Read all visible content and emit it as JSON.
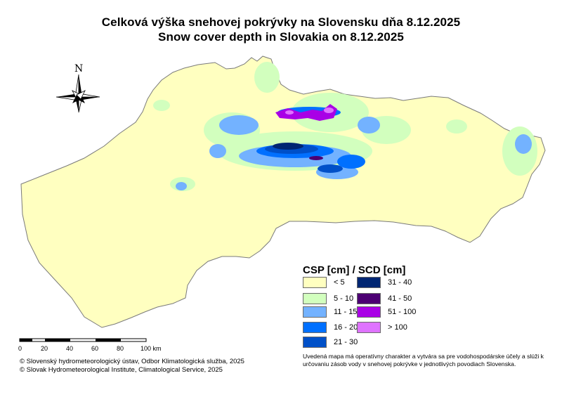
{
  "title_sk": "Celková výška snehovej pokrývky na Slovensku dňa 8.12.2025",
  "title_en": "Snow cover depth in Slovakia on 8.12.2025",
  "north_arrow": {
    "label": "N",
    "icon": "compass-rose-icon"
  },
  "legend": {
    "title": "CSP [cm] / SCD [cm]",
    "items": [
      {
        "label": "< 5",
        "color": "#ffffc0"
      },
      {
        "label": "5 - 10",
        "color": "#d2ffbe"
      },
      {
        "label": "11 - 15",
        "color": "#73b2ff"
      },
      {
        "label": "16 - 20",
        "color": "#0070ff"
      },
      {
        "label": "21 - 30",
        "color": "#0050c8"
      },
      {
        "label": "31 - 40",
        "color": "#002673"
      },
      {
        "label": "41 - 50",
        "color": "#4c0073"
      },
      {
        "label": "51 - 100",
        "color": "#a900e6"
      },
      {
        "label": "> 100",
        "color": "#df73ff"
      }
    ]
  },
  "scale_bar": {
    "ticks": [
      "0",
      "20",
      "40",
      "60",
      "80",
      "100 km"
    ]
  },
  "credits": {
    "sk": "© Slovenský hydrometeorologický ústav, Odbor Klimatologická služba, 2025",
    "en": "© Slovak Hydrometeorological Institute, Climatological Service, 2025"
  },
  "note": "Uvedená mapa má operatívny charakter a vytvára sa pre vodohospodárske účely a slúži k určovaniu zásob vody v snehovej pokrývke v jednotlivých povodiach Slovenska."
}
